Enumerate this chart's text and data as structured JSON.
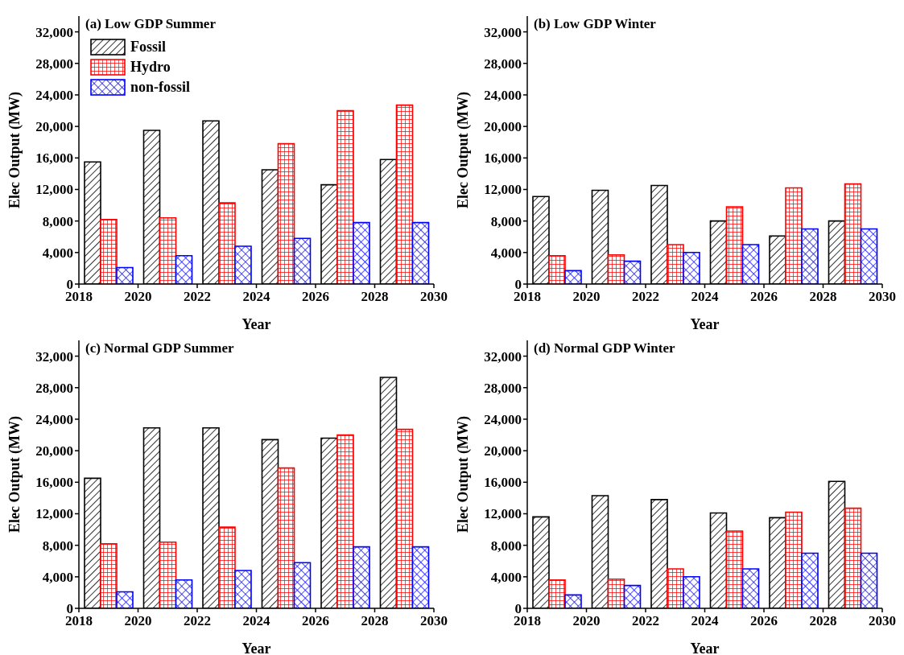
{
  "chart_data": [
    {
      "type": "bar",
      "title": "(a) Low GDP Summer",
      "xlabel": "Year",
      "ylabel": "Elec Output (MW)",
      "x": [
        2019,
        2021,
        2023,
        2025,
        2027,
        2029
      ],
      "xlim": [
        2018,
        2030
      ],
      "xticks": [
        2018,
        2020,
        2022,
        2024,
        2026,
        2028,
        2030
      ],
      "ylim": [
        0,
        34000
      ],
      "yticks": [
        {
          "value": 0,
          "label": "0"
        },
        {
          "value": 4000,
          "label": "4,000"
        },
        {
          "value": 8000,
          "label": "8,000"
        },
        {
          "value": 12000,
          "label": "12,000"
        },
        {
          "value": 16000,
          "label": "16,000"
        },
        {
          "value": 20000,
          "label": "20,000"
        },
        {
          "value": 24000,
          "label": "24,000"
        },
        {
          "value": 28000,
          "label": "28,000"
        },
        {
          "value": 32000,
          "label": "32,000"
        }
      ],
      "legend": "top left",
      "grid": false,
      "series": [
        {
          "name": "Fossil",
          "color": "#000000",
          "values": [
            15500,
            19500,
            20700,
            14500,
            12600,
            15800
          ]
        },
        {
          "name": "Hydro",
          "color": "#ff0000",
          "values": [
            8200,
            8400,
            10300,
            17800,
            22000,
            22700
          ]
        },
        {
          "name": "non-fossil",
          "color": "#0000ff",
          "values": [
            2100,
            3600,
            4800,
            5800,
            7800,
            7800
          ]
        }
      ]
    },
    {
      "type": "bar",
      "title": "(b) Low GDP Winter",
      "xlabel": "Year",
      "ylabel": "Elec Output (MW)",
      "x": [
        2019,
        2021,
        2023,
        2025,
        2027,
        2029
      ],
      "xlim": [
        2018,
        2030
      ],
      "xticks": [
        2018,
        2020,
        2022,
        2024,
        2026,
        2028,
        2030
      ],
      "ylim": [
        0,
        34000
      ],
      "yticks": [
        {
          "value": 0,
          "label": "0"
        },
        {
          "value": 4000,
          "label": "4,000"
        },
        {
          "value": 8000,
          "label": "8,000"
        },
        {
          "value": 12000,
          "label": "12,000"
        },
        {
          "value": 16000,
          "label": "16,000"
        },
        {
          "value": 20000,
          "label": "20,000"
        },
        {
          "value": 24000,
          "label": "24,000"
        },
        {
          "value": 28000,
          "label": "28,000"
        },
        {
          "value": 32000,
          "label": "32,000"
        }
      ],
      "legend": false,
      "grid": false,
      "series": [
        {
          "color": "#000000",
          "values": [
            11100,
            11900,
            12500,
            8000,
            6100,
            8000
          ]
        },
        {
          "color": "#ff0000",
          "values": [
            3600,
            3700,
            5000,
            9800,
            12200,
            12700
          ]
        },
        {
          "color": "#0000ff",
          "values": [
            1700,
            2900,
            4000,
            5000,
            7000,
            7000
          ]
        }
      ]
    },
    {
      "type": "bar",
      "title": "(c) Normal GDP Summer",
      "xlabel": "Year",
      "ylabel": "Elec Output (MW)",
      "x": [
        2019,
        2021,
        2023,
        2025,
        2027,
        2029
      ],
      "xlim": [
        2018,
        2030
      ],
      "xticks": [
        2018,
        2020,
        2022,
        2024,
        2026,
        2028,
        2030
      ],
      "ylim": [
        0,
        34000
      ],
      "yticks": [
        {
          "value": 0,
          "label": "0"
        },
        {
          "value": 4000,
          "label": "4,000"
        },
        {
          "value": 8000,
          "label": "8,000"
        },
        {
          "value": 12000,
          "label": "12,000"
        },
        {
          "value": 16000,
          "label": "16,000"
        },
        {
          "value": 20000,
          "label": "20,000"
        },
        {
          "value": 24000,
          "label": "24,000"
        },
        {
          "value": 28000,
          "label": "28,000"
        },
        {
          "value": 32000,
          "label": "32,000"
        }
      ],
      "legend": false,
      "grid": false,
      "series": [
        {
          "color": "#000000",
          "values": [
            16500,
            22900,
            22900,
            21400,
            21600,
            29300
          ]
        },
        {
          "color": "#ff0000",
          "values": [
            8200,
            8400,
            10300,
            17800,
            22000,
            22700
          ]
        },
        {
          "color": "#0000ff",
          "values": [
            2100,
            3600,
            4800,
            5800,
            7800,
            7800
          ]
        }
      ]
    },
    {
      "type": "bar",
      "title": "(d) Normal GDP Winter",
      "xlabel": "Year",
      "ylabel": "Elec Output (MW)",
      "x": [
        2019,
        2021,
        2023,
        2025,
        2027,
        2029
      ],
      "xlim": [
        2018,
        2030
      ],
      "xticks": [
        2018,
        2020,
        2022,
        2024,
        2026,
        2028,
        2030
      ],
      "ylim": [
        0,
        34000
      ],
      "yticks": [
        {
          "value": 0,
          "label": "0"
        },
        {
          "value": 4000,
          "label": "4,000"
        },
        {
          "value": 8000,
          "label": "8,000"
        },
        {
          "value": 12000,
          "label": "12,000"
        },
        {
          "value": 16000,
          "label": "16,000"
        },
        {
          "value": 20000,
          "label": "20,000"
        },
        {
          "value": 24000,
          "label": "24,000"
        },
        {
          "value": 28000,
          "label": "28,000"
        },
        {
          "value": 32000,
          "label": "32,000"
        }
      ],
      "legend": false,
      "grid": false,
      "series": [
        {
          "color": "#000000",
          "values": [
            11600,
            14300,
            13800,
            12100,
            11500,
            16100
          ]
        },
        {
          "color": "#ff0000",
          "values": [
            3600,
            3700,
            5000,
            9800,
            12200,
            12700
          ]
        },
        {
          "color": "#0000ff",
          "values": [
            1700,
            2900,
            4000,
            5000,
            7000,
            7000
          ]
        }
      ]
    }
  ]
}
